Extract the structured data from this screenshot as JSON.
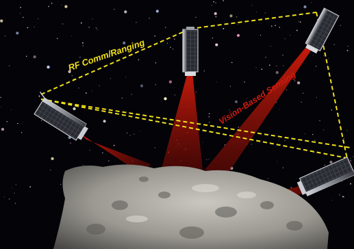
{
  "labels": {
    "rf_link": "RF Comm/Ranging",
    "vision": "Vision-Based Sensing"
  },
  "colors": {
    "rf_link": "#f2e11c",
    "vision": "#d11a10",
    "beam": "#c81a0c",
    "space": "#030308",
    "asteroid": "#9a9891",
    "spacecraft_body": "#8a8d94",
    "solar_panel": "#2a2c33"
  },
  "elements": {
    "spacecraft": [
      "cubesat-left",
      "cubesat-top-center",
      "cubesat-top-right",
      "cubesat-bottom-right"
    ],
    "body": "asteroid",
    "background": "starfield"
  }
}
